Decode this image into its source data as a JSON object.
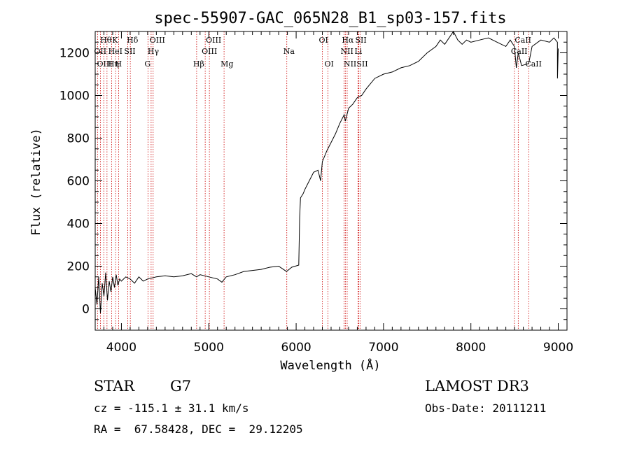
{
  "chart_data": {
    "type": "line",
    "title": "spec-55907-GAC_065N28_B1_sp03-157.fits",
    "xlabel": "Wavelength (Å)",
    "ylabel": "Flux (relative)",
    "xlim": [
      3700,
      9100
    ],
    "ylim": [
      -100,
      1300
    ],
    "xticks": [
      4000,
      5000,
      6000,
      7000,
      8000,
      9000
    ],
    "yticks": [
      0,
      200,
      400,
      600,
      800,
      1000,
      1200
    ],
    "line_color": "#000000",
    "marker_color": "#cc0000",
    "spectrum": {
      "x": [
        3700,
        3720,
        3740,
        3760,
        3780,
        3800,
        3820,
        3840,
        3860,
        3880,
        3900,
        3920,
        3940,
        3960,
        3980,
        4000,
        4050,
        4100,
        4150,
        4200,
        4250,
        4300,
        4350,
        4400,
        4500,
        4600,
        4700,
        4800,
        4860,
        4900,
        4950,
        5000,
        5100,
        5150,
        5200,
        5300,
        5400,
        5500,
        5600,
        5700,
        5800,
        5890,
        5950,
        6030,
        6040,
        6050,
        6080,
        6100,
        6150,
        6200,
        6250,
        6280,
        6300,
        6350,
        6400,
        6450,
        6500,
        6550,
        6563,
        6600,
        6650,
        6700,
        6750,
        6800,
        6900,
        7000,
        7100,
        7200,
        7300,
        7400,
        7500,
        7600,
        7650,
        7700,
        7750,
        7800,
        7850,
        7900,
        7950,
        8000,
        8100,
        8200,
        8300,
        8400,
        8450,
        8498,
        8520,
        8542,
        8580,
        8662,
        8700,
        8800,
        8900,
        8950,
        8990,
        8991,
        9000
      ],
      "y": [
        100,
        20,
        150,
        -20,
        120,
        60,
        170,
        40,
        130,
        80,
        150,
        100,
        160,
        110,
        140,
        130,
        150,
        140,
        120,
        150,
        130,
        140,
        145,
        150,
        155,
        150,
        155,
        165,
        150,
        160,
        155,
        150,
        140,
        125,
        150,
        160,
        175,
        180,
        185,
        195,
        200,
        175,
        195,
        205,
        430,
        520,
        540,
        560,
        600,
        640,
        650,
        600,
        690,
        740,
        780,
        820,
        870,
        910,
        880,
        940,
        960,
        990,
        1000,
        1030,
        1080,
        1100,
        1110,
        1130,
        1140,
        1160,
        1200,
        1230,
        1260,
        1240,
        1270,
        1300,
        1260,
        1240,
        1260,
        1250,
        1260,
        1270,
        1250,
        1230,
        1260,
        1230,
        1130,
        1200,
        1140,
        1150,
        1230,
        1260,
        1250,
        1270,
        1250,
        1080,
        1220
      ]
    },
    "lines": [
      {
        "name": "Hθ",
        "wl": 3798,
        "row": 0,
        "dx": 0
      },
      {
        "name": "OII",
        "wl": 3727,
        "row": 1,
        "dx": 0
      },
      {
        "name": "OIII",
        "wl": 3760,
        "row": 2,
        "dx": 0
      },
      {
        "name": "Hη",
        "wl": 3835,
        "row": 2,
        "dx": 6
      },
      {
        "name": "HeI",
        "wl": 3889,
        "row": 1,
        "dx": 0
      },
      {
        "name": "K",
        "wl": 3934,
        "row": 0,
        "dx": 0
      },
      {
        "name": "H",
        "wl": 3968,
        "row": 2,
        "dx": 0
      },
      {
        "name": "SII",
        "wl": 4072,
        "row": 1,
        "dx": 0
      },
      {
        "name": "Hδ",
        "wl": 4102,
        "row": 0,
        "dx": 0
      },
      {
        "name": "OIII",
        "wl": 4363,
        "row": 0,
        "dx": 0
      },
      {
        "name": "Hγ",
        "wl": 4340,
        "row": 1,
        "dx": 0
      },
      {
        "name": "G",
        "wl": 4304,
        "row": 2,
        "dx": 0
      },
      {
        "name": "Hβ",
        "wl": 4861,
        "row": 2,
        "dx": 0
      },
      {
        "name": "OIII",
        "wl": 5007,
        "row": 0,
        "dx": 0
      },
      {
        "name": "OIII",
        "wl": 4959,
        "row": 1,
        "dx": 0
      },
      {
        "name": "Mg",
        "wl": 5175,
        "row": 2,
        "dx": 0
      },
      {
        "name": "Na",
        "wl": 5893,
        "row": 1,
        "dx": 0
      },
      {
        "name": "OI",
        "wl": 6300,
        "row": 0,
        "dx": 0
      },
      {
        "name": "OI",
        "wl": 6364,
        "row": 2,
        "dx": 0
      },
      {
        "name": "Hα",
        "wl": 6563,
        "row": 0,
        "dx": 0
      },
      {
        "name": "NII",
        "wl": 6548,
        "row": 1,
        "dx": 0
      },
      {
        "name": "NII",
        "wl": 6584,
        "row": 2,
        "dx": 0
      },
      {
        "name": "SII",
        "wl": 6716,
        "row": 0,
        "dx": 0
      },
      {
        "name": "Li",
        "wl": 6708,
        "row": 1,
        "dx": 0
      },
      {
        "name": "SII",
        "wl": 6731,
        "row": 2,
        "dx": 0
      },
      {
        "name": "CaII",
        "wl": 8542,
        "row": 0,
        "dx": 0
      },
      {
        "name": "CaII",
        "wl": 8498,
        "row": 1,
        "dx": 0
      },
      {
        "name": "CaII",
        "wl": 8662,
        "row": 2,
        "dx": 0
      }
    ]
  },
  "info": {
    "class": "STAR",
    "subclass": "G7",
    "survey": "LAMOST DR3",
    "cz": "cz = -115.1 ± 31.1 km/s",
    "obs_date": "Obs-Date: 20111211",
    "coords": "RA =  67.58428, DEC =  29.12205"
  }
}
